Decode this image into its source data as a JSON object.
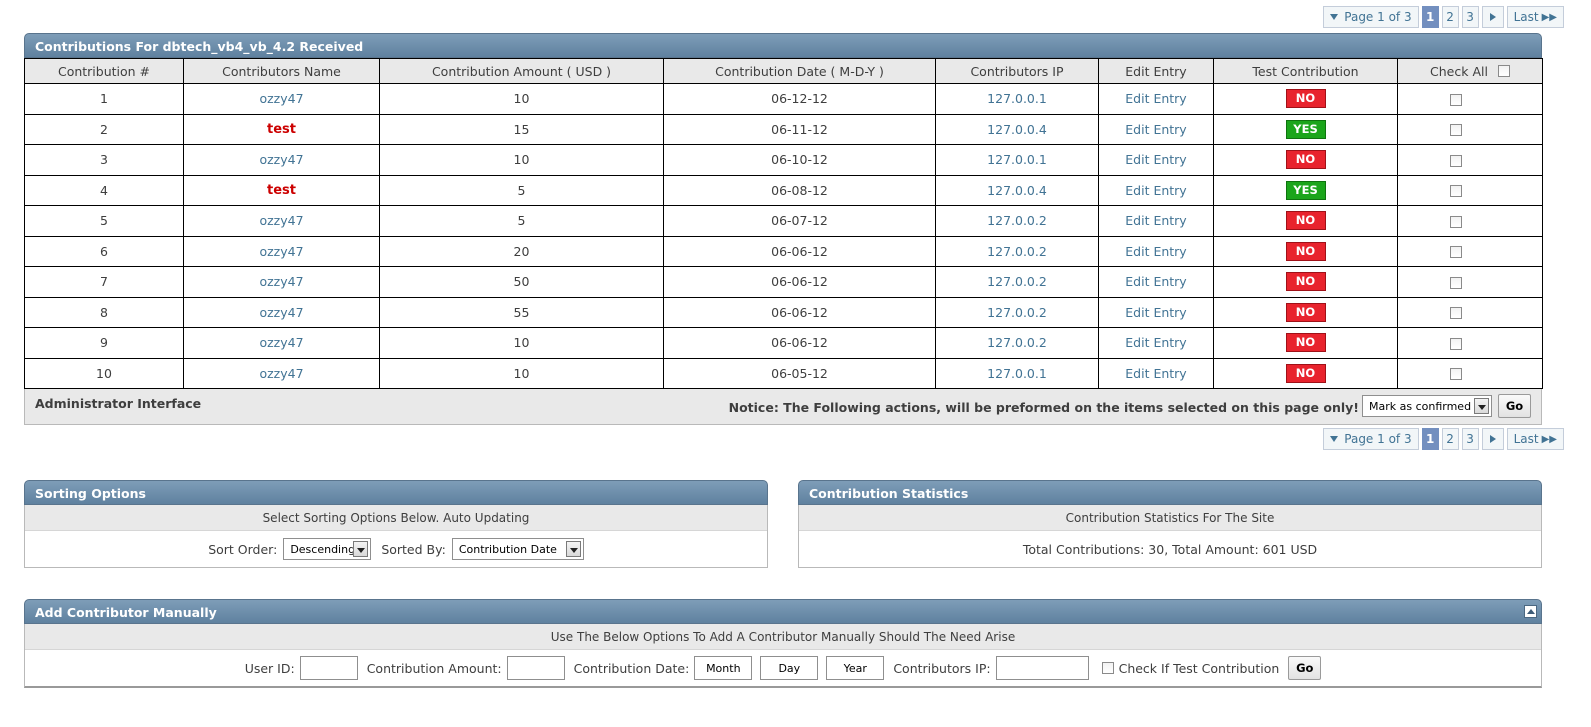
{
  "pagination": {
    "label": "Page 1 of 3",
    "pages": [
      "1",
      "2",
      "3"
    ],
    "current": "1",
    "last_label": "Last"
  },
  "main": {
    "title": "Contributions For dbtech_vb4_vb_4.2 Received",
    "columns": [
      "Contribution #",
      "Contributors Name",
      "Contribution Amount ( USD )",
      "Contribution Date ( M-D-Y )",
      "Contributors IP",
      "Edit Entry",
      "Test Contribution",
      "Check All"
    ],
    "rows": [
      {
        "num": "1",
        "name": "ozzy47",
        "amount": "10",
        "date": "06-12-12",
        "ip": "127.0.0.1",
        "edit": "Edit Entry",
        "test": "NO"
      },
      {
        "num": "2",
        "name": "test",
        "amount": "15",
        "date": "06-11-12",
        "ip": "127.0.0.4",
        "edit": "Edit Entry",
        "test": "YES"
      },
      {
        "num": "3",
        "name": "ozzy47",
        "amount": "10",
        "date": "06-10-12",
        "ip": "127.0.0.1",
        "edit": "Edit Entry",
        "test": "NO"
      },
      {
        "num": "4",
        "name": "test",
        "amount": "5",
        "date": "06-08-12",
        "ip": "127.0.0.4",
        "edit": "Edit Entry",
        "test": "YES"
      },
      {
        "num": "5",
        "name": "ozzy47",
        "amount": "5",
        "date": "06-07-12",
        "ip": "127.0.0.2",
        "edit": "Edit Entry",
        "test": "NO"
      },
      {
        "num": "6",
        "name": "ozzy47",
        "amount": "20",
        "date": "06-06-12",
        "ip": "127.0.0.2",
        "edit": "Edit Entry",
        "test": "NO"
      },
      {
        "num": "7",
        "name": "ozzy47",
        "amount": "50",
        "date": "06-06-12",
        "ip": "127.0.0.2",
        "edit": "Edit Entry",
        "test": "NO"
      },
      {
        "num": "8",
        "name": "ozzy47",
        "amount": "55",
        "date": "06-06-12",
        "ip": "127.0.0.2",
        "edit": "Edit Entry",
        "test": "NO"
      },
      {
        "num": "9",
        "name": "ozzy47",
        "amount": "10",
        "date": "06-06-12",
        "ip": "127.0.0.2",
        "edit": "Edit Entry",
        "test": "NO"
      },
      {
        "num": "10",
        "name": "ozzy47",
        "amount": "10",
        "date": "06-05-12",
        "ip": "127.0.0.1",
        "edit": "Edit Entry",
        "test": "NO"
      }
    ]
  },
  "admin": {
    "title": "Administrator Interface",
    "notice": "Notice: The Following actions, will be preformed on the items selected on this page only!",
    "action_selected": "Mark as confirmed",
    "go_label": "Go"
  },
  "sorting": {
    "title": "Sorting Options",
    "subtitle": "Select Sorting Options Below. Auto Updating",
    "order_label": "Sort Order:",
    "order_value": "Descending",
    "by_label": "Sorted By:",
    "by_value": "Contribution Date"
  },
  "stats": {
    "title": "Contribution Statistics",
    "subtitle": "Contribution Statistics For The Site",
    "summary": "Total Contributions: 30, Total Amount: 601 USD"
  },
  "add": {
    "title": "Add Contributor Manually",
    "subtitle": "Use The Below Options To Add A Contributor Manually Should The Need Arise",
    "user_id_label": "User ID:",
    "amount_label": "Contribution Amount:",
    "date_label": "Contribution Date:",
    "month_placeholder": "Month",
    "day_placeholder": "Day",
    "year_placeholder": "Year",
    "ip_label": "Contributors IP:",
    "test_label": "Check If Test Contribution",
    "go_label": "Go"
  },
  "colors": {
    "header_bar": "#6f8fab",
    "link": "#417394",
    "badge_no": "#e8232d",
    "badge_yes": "#1ba51b",
    "test_name": "#cc0000"
  }
}
